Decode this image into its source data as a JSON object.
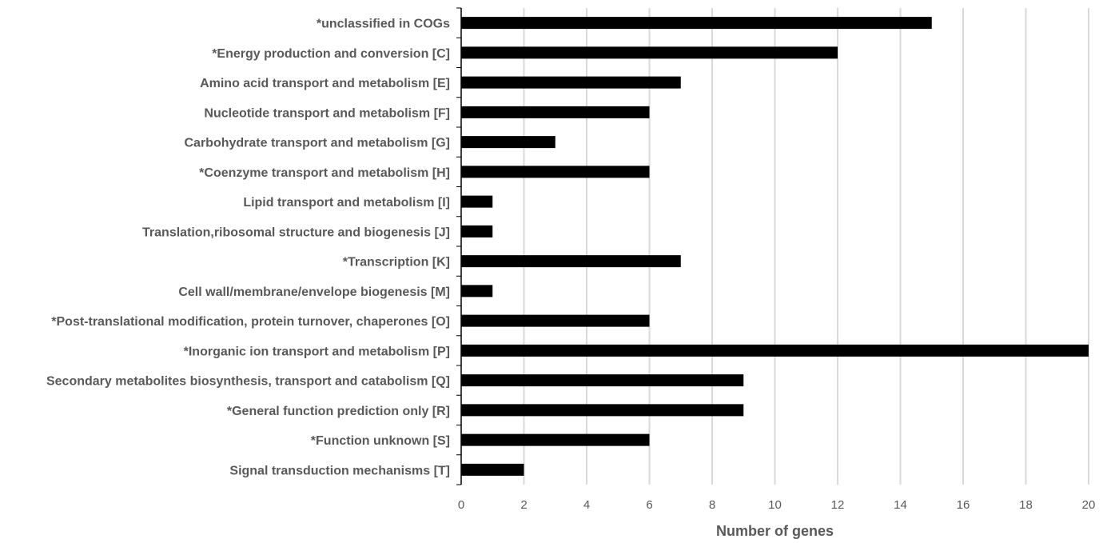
{
  "chart_data": {
    "type": "bar",
    "orientation": "horizontal",
    "categories": [
      "*unclassified in COGs",
      "*Energy production and conversion [C]",
      "Amino acid transport and metabolism [E]",
      "Nucleotide transport and metabolism [F]",
      "Carbohydrate transport and metabolism [G]",
      "*Coenzyme transport and metabolism [H]",
      "Lipid transport and metabolism [I]",
      "Translation,ribosomal structure and biogenesis [J]",
      "*Transcription [K]",
      "Cell wall/membrane/envelope biogenesis [M]",
      "*Post-translational modification, protein turnover, chaperones [O]",
      "*Inorganic ion transport and metabolism [P]",
      "Secondary metabolites biosynthesis, transport and catabolism [Q]",
      "*General function prediction only [R]",
      "*Function unknown [S]",
      "Signal transduction mechanisms [T]"
    ],
    "values": [
      15,
      12,
      7,
      6,
      3,
      6,
      1,
      1,
      7,
      1,
      6,
      20,
      9,
      9,
      6,
      2
    ],
    "xlabel": "Number of genes",
    "ylabel": "",
    "xlim": [
      0,
      20
    ],
    "xticks": [
      0,
      2,
      4,
      6,
      8,
      10,
      12,
      14,
      16,
      18,
      20
    ],
    "grid": "vertical",
    "legend": "none",
    "bar_color": "#000000",
    "grid_color": "#d9d9d9",
    "axis_color": "#000000",
    "text_color": "#595959"
  }
}
